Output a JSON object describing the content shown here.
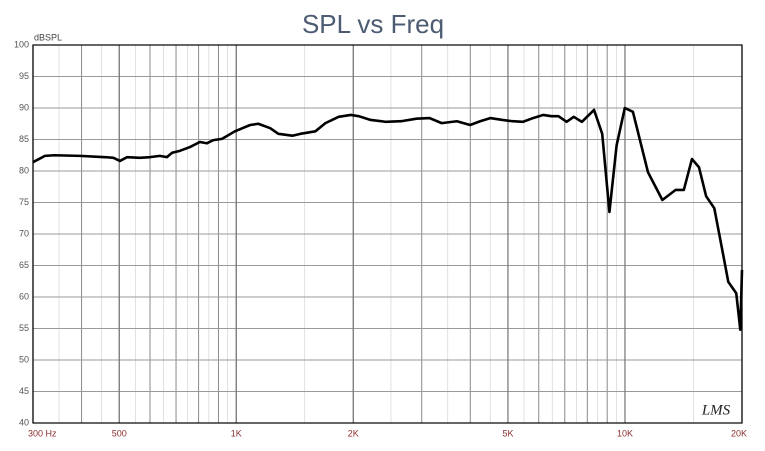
{
  "chart_data": {
    "type": "line",
    "title": "SPL vs Freq",
    "ylabel": "dBSPL",
    "logo": "LMS",
    "color": "#000000",
    "xlog": true,
    "grid": true,
    "xlim": [
      300,
      20000
    ],
    "ylim": [
      40,
      100
    ],
    "xticks": [
      {
        "value": 300,
        "label": "300 Hz"
      },
      500,
      {
        "value": 1000,
        "label": "1K"
      },
      {
        "value": 2000,
        "label": "2K"
      },
      {
        "value": 5000,
        "label": "5K"
      },
      {
        "value": 10000,
        "label": "10K"
      },
      {
        "value": 20000,
        "label": "20K"
      }
    ],
    "yticks": [
      40,
      45,
      50,
      55,
      60,
      65,
      70,
      75,
      80,
      85,
      90,
      95,
      100
    ],
    "x": [
      300,
      322,
      340,
      396,
      460,
      483,
      502,
      524,
      565,
      600,
      636,
      663,
      684,
      716,
      760,
      806,
      840,
      873,
      919,
      992,
      1086,
      1139,
      1223,
      1283,
      1394,
      1462,
      1598,
      1696,
      1834,
      1971,
      2066,
      2218,
      2427,
      2656,
      2906,
      3141,
      3376,
      3695,
      3996,
      4241,
      4503,
      4840,
      5141,
      5460,
      5800,
      6160,
      6465,
      6743,
      7077,
      7383,
      7749,
      8325,
      8738,
      9120,
      9518,
      9990,
      10480,
      11460,
      12480,
      13500,
      14170,
      14870,
      15500,
      16170,
      16970,
      17690,
      18440,
      19330,
      19800,
      20000
    ],
    "values": [
      81.4,
      82.4,
      82.5,
      82.4,
      82.2,
      82.1,
      81.6,
      82.2,
      82.1,
      82.2,
      82.4,
      82.2,
      82.9,
      83.2,
      83.8,
      84.6,
      84.4,
      84.9,
      85.1,
      86.3,
      87.3,
      87.5,
      86.8,
      85.9,
      85.6,
      85.9,
      86.3,
      87.6,
      88.6,
      88.9,
      88.7,
      88.1,
      87.8,
      87.9,
      88.3,
      88.4,
      87.6,
      87.9,
      87.3,
      87.9,
      88.4,
      88.1,
      87.9,
      87.8,
      88.4,
      88.9,
      88.7,
      88.7,
      87.8,
      88.6,
      87.8,
      89.7,
      85.9,
      73.5,
      84.1,
      90.0,
      89.4,
      79.8,
      75.4,
      77.0,
      77.0,
      81.9,
      80.6,
      76.0,
      74.1,
      68.3,
      62.4,
      60.6,
      54.8,
      64.3
    ]
  }
}
